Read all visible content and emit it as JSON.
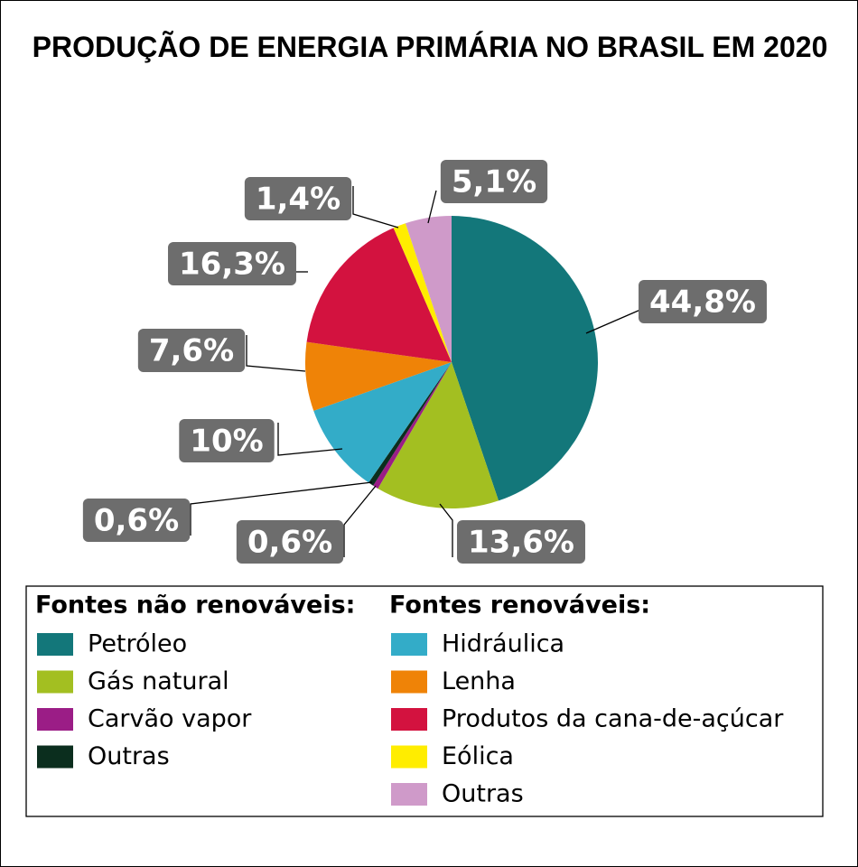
{
  "chart_data": {
    "type": "pie",
    "title": "PRODUÇÃO DE ENERGIA PRIMÁRIA NO BRASIL EM 2020",
    "groups": [
      {
        "name": "Fontes não renováveis:",
        "categories": [
          "Petróleo",
          "Gás natural",
          "Carvão vapor",
          "Outras"
        ],
        "values": [
          44.8,
          13.6,
          0.6,
          0.6
        ],
        "value_labels": [
          "44,8%",
          "13,6%",
          "0,6%",
          "0,6%"
        ],
        "colors": [
          "#13777a",
          "#a3bf21",
          "#9b1d86",
          "#0b2e1e"
        ]
      },
      {
        "name": "Fontes renováveis:",
        "categories": [
          "Hidráulica",
          "Lenha",
          "Produtos da cana-de-açúcar",
          "Eólica",
          "Outras"
        ],
        "values": [
          10,
          7.6,
          16.3,
          1.4,
          5.1
        ],
        "value_labels": [
          "10%",
          "7,6%",
          "16,3%",
          "1,4%",
          "5,1%"
        ],
        "colors": [
          "#33acc8",
          "#ef8307",
          "#d3123f",
          "#ffed00",
          "#cf9ac9"
        ]
      }
    ]
  }
}
